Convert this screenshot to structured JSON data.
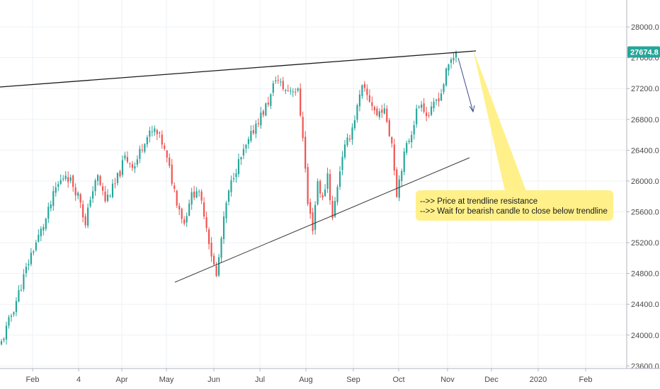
{
  "chart_data": {
    "type": "candlestick",
    "ylim": [
      23300,
      28350
    ],
    "y_ticks": [
      23600,
      24000,
      24400,
      24800,
      25200,
      25600,
      26000,
      26400,
      26800,
      27200,
      27600,
      28000
    ],
    "y_tick_labels": [
      "23600.0",
      "24000.0",
      "24400.0",
      "24800.0",
      "25200.0",
      "25600.0",
      "26000.0",
      "26400.0",
      "26800.0",
      "27200.0",
      "27600.0",
      "28000.0"
    ],
    "x_tick_labels": [
      "Feb",
      "4",
      "Apr",
      "May",
      "Jun",
      "Jul",
      "Aug",
      "Sep",
      "Oct",
      "Nov",
      "Dec",
      "2020",
      "Feb"
    ],
    "last_price": 27674.8,
    "last_price_label": "27674.8",
    "annotation": {
      "lines": [
        "-->> Price at trendline resistance",
        "-->> Wait for bearish candle to close below trendline"
      ]
    },
    "colors": {
      "up": "#26a69a",
      "down": "#ef5350",
      "trendline": "#1a1a1a",
      "arrow": "#3b4a8c",
      "note_bg": "#fff08a",
      "price_tag": "#26a69a"
    },
    "waypoints": [
      [
        0,
        23900
      ],
      [
        5,
        24350
      ],
      [
        12,
        25050
      ],
      [
        18,
        25500
      ],
      [
        22,
        25900
      ],
      [
        26,
        26100
      ],
      [
        29,
        25950
      ],
      [
        32,
        25750
      ],
      [
        34,
        25400
      ],
      [
        36,
        25800
      ],
      [
        39,
        26050
      ],
      [
        42,
        25750
      ],
      [
        46,
        25950
      ],
      [
        50,
        26300
      ],
      [
        54,
        26200
      ],
      [
        58,
        26550
      ],
      [
        62,
        26650
      ],
      [
        65,
        26500
      ],
      [
        68,
        26150
      ],
      [
        71,
        25750
      ],
      [
        74,
        25450
      ],
      [
        76,
        25750
      ],
      [
        79,
        25900
      ],
      [
        82,
        25600
      ],
      [
        85,
        25050
      ],
      [
        87,
        24750
      ],
      [
        89,
        25250
      ],
      [
        91,
        25700
      ],
      [
        94,
        26100
      ],
      [
        97,
        26300
      ],
      [
        100,
        26500
      ],
      [
        103,
        26750
      ],
      [
        106,
        26900
      ],
      [
        109,
        27100
      ],
      [
        111,
        27350
      ],
      [
        113,
        27250
      ],
      [
        115,
        27180
      ],
      [
        118,
        27200
      ],
      [
        120,
        27150
      ],
      [
        122,
        26600
      ],
      [
        124,
        25700
      ],
      [
        126,
        25400
      ],
      [
        128,
        26000
      ],
      [
        130,
        25750
      ],
      [
        132,
        26100
      ],
      [
        134,
        25500
      ],
      [
        136,
        25950
      ],
      [
        138,
        26350
      ],
      [
        140,
        26500
      ],
      [
        142,
        26700
      ],
      [
        144,
        26950
      ],
      [
        146,
        27200
      ],
      [
        148,
        27100
      ],
      [
        150,
        27000
      ],
      [
        152,
        26850
      ],
      [
        154,
        26950
      ],
      [
        156,
        26800
      ],
      [
        158,
        26500
      ],
      [
        160,
        25850
      ],
      [
        162,
        26200
      ],
      [
        164,
        26450
      ],
      [
        166,
        26650
      ],
      [
        168,
        26900
      ],
      [
        170,
        27050
      ],
      [
        172,
        26850
      ],
      [
        174,
        26900
      ],
      [
        176,
        27050
      ],
      [
        178,
        27150
      ],
      [
        180,
        27400
      ],
      [
        182,
        27580
      ],
      [
        183,
        27620
      ],
      [
        184,
        27674.8
      ]
    ]
  }
}
